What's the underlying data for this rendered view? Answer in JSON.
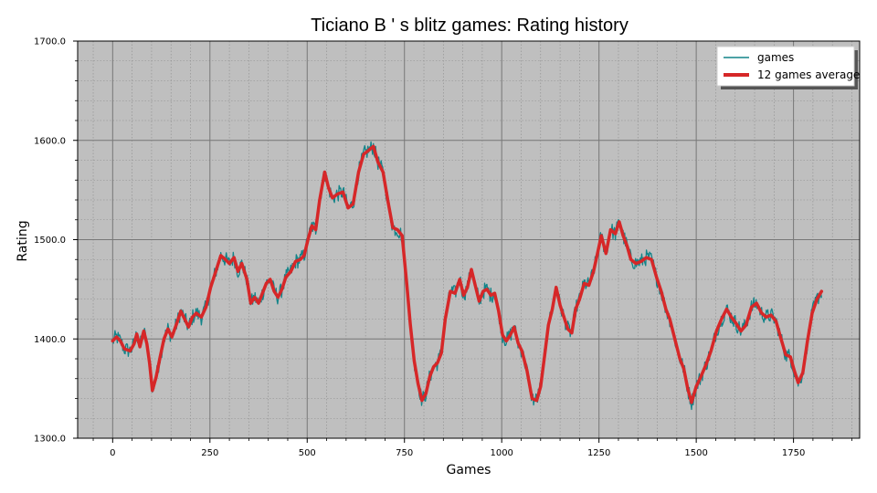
{
  "chart_data": {
    "type": "line",
    "title": "Ticiano B ' s blitz games: Rating history",
    "xlabel": "Games",
    "ylabel": "Rating",
    "xlim": [
      -90,
      1920
    ],
    "ylim": [
      1300,
      1700
    ],
    "x_ticks": [
      "0",
      "250",
      "500",
      "750",
      "1000",
      "1250",
      "1500",
      "1750"
    ],
    "y_ticks": [
      "1300.0",
      "1400.0",
      "1500.0",
      "1600.0",
      "1700.0"
    ],
    "grid": true,
    "legend_position": "top-right",
    "background": "#bfbfbf",
    "colors": {
      "games": "#128489",
      "average": "#d62728"
    },
    "series": [
      {
        "name": "games",
        "noise": 8
      },
      {
        "name": "12 games average",
        "points": [
          [
            0,
            1398
          ],
          [
            10,
            1402
          ],
          [
            20,
            1398
          ],
          [
            30,
            1390
          ],
          [
            45,
            1388
          ],
          [
            55,
            1395
          ],
          [
            62,
            1405
          ],
          [
            70,
            1392
          ],
          [
            80,
            1408
          ],
          [
            88,
            1395
          ],
          [
            95,
            1375
          ],
          [
            102,
            1348
          ],
          [
            112,
            1362
          ],
          [
            122,
            1382
          ],
          [
            132,
            1400
          ],
          [
            142,
            1410
          ],
          [
            152,
            1402
          ],
          [
            165,
            1416
          ],
          [
            175,
            1428
          ],
          [
            185,
            1420
          ],
          [
            195,
            1412
          ],
          [
            205,
            1422
          ],
          [
            215,
            1426
          ],
          [
            228,
            1422
          ],
          [
            240,
            1432
          ],
          [
            252,
            1452
          ],
          [
            265,
            1468
          ],
          [
            278,
            1484
          ],
          [
            290,
            1480
          ],
          [
            300,
            1476
          ],
          [
            312,
            1482
          ],
          [
            322,
            1468
          ],
          [
            332,
            1476
          ],
          [
            345,
            1460
          ],
          [
            355,
            1436
          ],
          [
            365,
            1442
          ],
          [
            375,
            1436
          ],
          [
            385,
            1446
          ],
          [
            395,
            1456
          ],
          [
            405,
            1460
          ],
          [
            415,
            1448
          ],
          [
            425,
            1442
          ],
          [
            435,
            1450
          ],
          [
            445,
            1462
          ],
          [
            458,
            1468
          ],
          [
            470,
            1478
          ],
          [
            482,
            1480
          ],
          [
            492,
            1484
          ],
          [
            502,
            1500
          ],
          [
            512,
            1514
          ],
          [
            522,
            1510
          ],
          [
            532,
            1540
          ],
          [
            545,
            1568
          ],
          [
            555,
            1552
          ],
          [
            565,
            1542
          ],
          [
            578,
            1546
          ],
          [
            592,
            1548
          ],
          [
            605,
            1532
          ],
          [
            618,
            1536
          ],
          [
            632,
            1568
          ],
          [
            645,
            1586
          ],
          [
            658,
            1590
          ],
          [
            670,
            1594
          ],
          [
            682,
            1578
          ],
          [
            695,
            1568
          ],
          [
            708,
            1538
          ],
          [
            720,
            1512
          ],
          [
            732,
            1510
          ],
          [
            744,
            1504
          ],
          [
            756,
            1455
          ],
          [
            765,
            1415
          ],
          [
            775,
            1378
          ],
          [
            785,
            1355
          ],
          [
            795,
            1338
          ],
          [
            805,
            1345
          ],
          [
            815,
            1362
          ],
          [
            825,
            1372
          ],
          [
            835,
            1376
          ],
          [
            845,
            1386
          ],
          [
            855,
            1420
          ],
          [
            868,
            1448
          ],
          [
            880,
            1446
          ],
          [
            892,
            1460
          ],
          [
            902,
            1444
          ],
          [
            912,
            1452
          ],
          [
            922,
            1470
          ],
          [
            932,
            1454
          ],
          [
            942,
            1438
          ],
          [
            952,
            1448
          ],
          [
            962,
            1450
          ],
          [
            972,
            1444
          ],
          [
            982,
            1446
          ],
          [
            992,
            1428
          ],
          [
            1002,
            1404
          ],
          [
            1012,
            1398
          ],
          [
            1022,
            1404
          ],
          [
            1032,
            1412
          ],
          [
            1042,
            1396
          ],
          [
            1052,
            1388
          ],
          [
            1065,
            1368
          ],
          [
            1078,
            1340
          ],
          [
            1090,
            1338
          ],
          [
            1100,
            1352
          ],
          [
            1110,
            1382
          ],
          [
            1120,
            1414
          ],
          [
            1130,
            1430
          ],
          [
            1140,
            1452
          ],
          [
            1150,
            1434
          ],
          [
            1160,
            1422
          ],
          [
            1170,
            1410
          ],
          [
            1180,
            1406
          ],
          [
            1190,
            1430
          ],
          [
            1200,
            1440
          ],
          [
            1212,
            1456
          ],
          [
            1224,
            1454
          ],
          [
            1236,
            1468
          ],
          [
            1246,
            1486
          ],
          [
            1256,
            1504
          ],
          [
            1268,
            1486
          ],
          [
            1280,
            1510
          ],
          [
            1292,
            1506
          ],
          [
            1302,
            1518
          ],
          [
            1312,
            1504
          ],
          [
            1322,
            1494
          ],
          [
            1332,
            1480
          ],
          [
            1345,
            1476
          ],
          [
            1358,
            1478
          ],
          [
            1372,
            1482
          ],
          [
            1385,
            1480
          ],
          [
            1398,
            1462
          ],
          [
            1410,
            1448
          ],
          [
            1422,
            1430
          ],
          [
            1432,
            1420
          ],
          [
            1445,
            1400
          ],
          [
            1458,
            1380
          ],
          [
            1468,
            1370
          ],
          [
            1478,
            1350
          ],
          [
            1488,
            1336
          ],
          [
            1500,
            1352
          ],
          [
            1512,
            1362
          ],
          [
            1525,
            1374
          ],
          [
            1538,
            1388
          ],
          [
            1552,
            1408
          ],
          [
            1565,
            1420
          ],
          [
            1578,
            1430
          ],
          [
            1590,
            1422
          ],
          [
            1602,
            1416
          ],
          [
            1615,
            1408
          ],
          [
            1628,
            1414
          ],
          [
            1642,
            1432
          ],
          [
            1655,
            1436
          ],
          [
            1668,
            1426
          ],
          [
            1680,
            1422
          ],
          [
            1692,
            1424
          ],
          [
            1705,
            1418
          ],
          [
            1718,
            1400
          ],
          [
            1730,
            1384
          ],
          [
            1742,
            1382
          ],
          [
            1752,
            1368
          ],
          [
            1762,
            1356
          ],
          [
            1774,
            1366
          ],
          [
            1786,
            1398
          ],
          [
            1798,
            1426
          ],
          [
            1810,
            1440
          ],
          [
            1822,
            1448
          ]
        ]
      }
    ]
  }
}
